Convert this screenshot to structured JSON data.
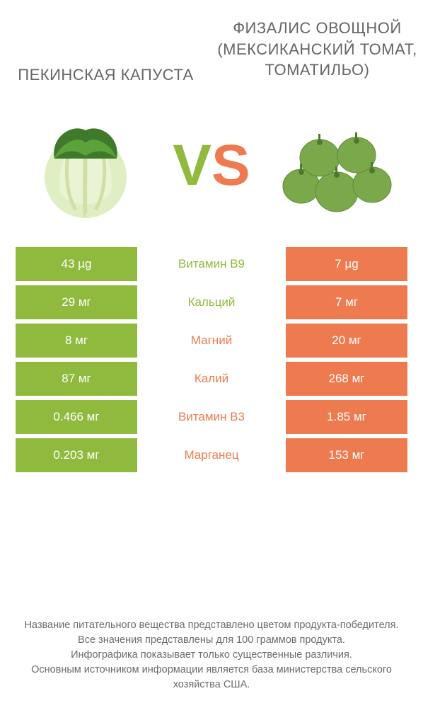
{
  "colors": {
    "left_bar": "#8fba3e",
    "right_bar": "#ee7b50",
    "background": "#ffffff",
    "text": "#646863"
  },
  "left_title": "ПЕКИНСКАЯ КАПУСТА",
  "right_title": "ФИЗАЛИС ОВОЩНОЙ (МЕКСИКАНСКИЙ ТОМАТ, ТОМАТИЛЬО)",
  "vs": {
    "v": "V",
    "s": "S"
  },
  "rows": [
    {
      "left": "43 µg",
      "label": "Витамин B9",
      "right": "7 µg",
      "winner": "left"
    },
    {
      "left": "29 мг",
      "label": "Кальций",
      "right": "7 мг",
      "winner": "left"
    },
    {
      "left": "8 мг",
      "label": "Магний",
      "right": "20 мг",
      "winner": "right"
    },
    {
      "left": "87 мг",
      "label": "Калий",
      "right": "268 мг",
      "winner": "right"
    },
    {
      "left": "0.466 мг",
      "label": "Витамин B3",
      "right": "1.85 мг",
      "winner": "right"
    },
    {
      "left": "0.203 мг",
      "label": "Марганец",
      "right": "153 мг",
      "winner": "right"
    }
  ],
  "footer_lines": [
    "Название питательного вещества представлено цветом продукта-победителя.",
    "Все значения представлены для 100 граммов продукта.",
    "Инфографика показывает только существенные различия.",
    "Основным источником информации является база министерства сельского хозяйства США."
  ]
}
